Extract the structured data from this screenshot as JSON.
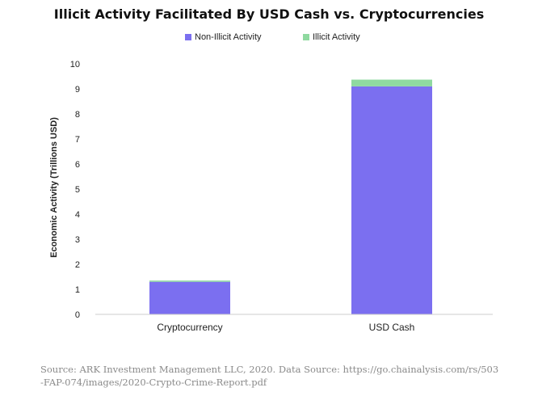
{
  "chart_data": {
    "type": "bar",
    "stacked": true,
    "title": "Illicit Activity Facilitated By USD Cash vs. Cryptocurrencies",
    "xlabel": "",
    "ylabel": "Economic Activity (Trillions USD)",
    "ylim": [
      0,
      10
    ],
    "yticks": [
      0,
      1,
      2,
      3,
      4,
      5,
      6,
      7,
      8,
      9,
      10
    ],
    "categories": [
      "Cryptocurrency",
      "USD Cash"
    ],
    "series": [
      {
        "name": "Non-Illicit Activity",
        "color": "#7b6ff0",
        "values": [
          1.3,
          9.1
        ]
      },
      {
        "name": "Illicit Activity",
        "color": "#8fd9a0",
        "values": [
          0.05,
          0.27
        ]
      }
    ],
    "grid": false,
    "legend_position": "top-center"
  },
  "source_note": "Source: ARK Investment Management LLC, 2020. Data Source: https://go.chainalysis.com/rs/503-FAP-074/images/2020-Crypto-Crime-Report.pdf"
}
